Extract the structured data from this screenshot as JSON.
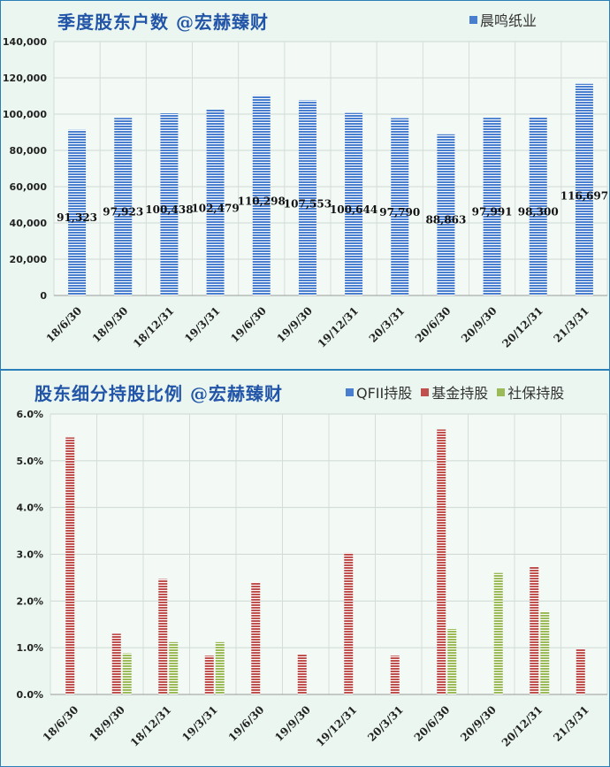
{
  "chart_data": [
    {
      "type": "bar",
      "title": "季度股东户数 @宏赫臻财",
      "categories": [
        "18/6/30",
        "18/9/30",
        "18/12/31",
        "19/3/31",
        "19/6/30",
        "19/9/30",
        "19/12/31",
        "20/3/31",
        "20/6/30",
        "20/9/30",
        "20/12/31",
        "21/3/31"
      ],
      "series": [
        {
          "name": "晨鸣纸业",
          "values": [
            91323,
            97923,
            100438,
            102479,
            110298,
            107553,
            100644,
            97790,
            88863,
            97991,
            98300,
            116697
          ]
        }
      ],
      "data_labels": [
        "91,323",
        "97,923",
        "100,438",
        "102,479",
        "110,298",
        "107,553",
        "100,644",
        "97,790",
        "88,863",
        "97,991",
        "98,300",
        "116,697"
      ],
      "ylim": [
        0,
        140000
      ],
      "y_ticks": [
        "0",
        "20,000",
        "40,000",
        "60,000",
        "80,000",
        "100,000",
        "120,000",
        "140,000"
      ],
      "grid": true,
      "legend": "top-right"
    },
    {
      "type": "bar",
      "title": "股东细分持股比例 @宏赫臻财",
      "categories": [
        "18/6/30",
        "18/9/30",
        "18/12/31",
        "19/3/31",
        "19/6/30",
        "19/9/30",
        "19/12/31",
        "20/3/31",
        "20/6/30",
        "20/9/30",
        "20/12/31",
        "21/3/31"
      ],
      "series": [
        {
          "name": "QFII持股",
          "values": [
            0,
            0,
            0,
            0,
            0,
            0,
            0,
            0,
            0,
            0,
            0,
            0
          ]
        },
        {
          "name": "基金持股",
          "values": [
            5.5,
            1.3,
            2.47,
            0.83,
            2.4,
            0.87,
            3.03,
            0.83,
            5.67,
            0,
            2.73,
            0.98
          ]
        },
        {
          "name": "社保持股",
          "values": [
            0,
            0.88,
            1.12,
            1.12,
            0,
            0,
            0,
            0,
            1.4,
            2.6,
            1.78,
            0
          ]
        }
      ],
      "ylim": [
        0,
        6.0
      ],
      "y_ticks": [
        "0.0%",
        "1.0%",
        "2.0%",
        "3.0%",
        "4.0%",
        "5.0%",
        "6.0%"
      ],
      "grid": true,
      "legend": "top-right"
    }
  ],
  "colors": {
    "series_blue": "#4a7fd0",
    "series_red": "#c0504d",
    "series_green": "#9bbb59",
    "title": "#2255a8"
  }
}
